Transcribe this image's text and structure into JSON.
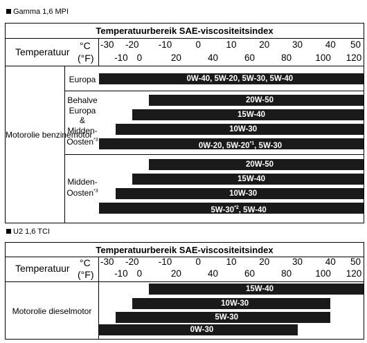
{
  "sections": [
    {
      "title": "Gamma 1,6 MPI",
      "caption": "Temperatuurbereik SAE-viscositeitsindex",
      "temp_label": "Temperatuur",
      "unit_c": "°C",
      "unit_f": "(°F)",
      "celsius_ticks": [
        "-30",
        "-20",
        "-10",
        "0",
        "10",
        "20",
        "30",
        "40",
        "50"
      ],
      "fahrenheit_ticks": [
        "-10",
        "0",
        "20",
        "40",
        "60",
        "80",
        "100",
        "120"
      ],
      "row_label": "Motorolie benzinemotor",
      "groups": [
        {
          "label": "Europa",
          "bars": [
            {
              "label": "0W-40, 5W-20, 5W-30, 5W-40",
              "from_c": -30,
              "to_c": 50
            }
          ]
        },
        {
          "label": "Behalve Europa & Midden-Oosten*3",
          "bars": [
            {
              "label": "20W-50",
              "from_c": -15,
              "to_c": 50
            },
            {
              "label": "15W-40",
              "from_c": -20,
              "to_c": 50
            },
            {
              "label": "10W-30",
              "from_c": -25,
              "to_c": 50
            },
            {
              "label": "0W-20, 5W-20*1, 5W-30",
              "from_c": -30,
              "to_c": 50
            }
          ]
        },
        {
          "label": "Midden-Oosten*3",
          "bars": [
            {
              "label": "20W-50",
              "from_c": -15,
              "to_c": 50
            },
            {
              "label": "15W-40",
              "from_c": -20,
              "to_c": 50
            },
            {
              "label": "10W-30",
              "from_c": -25,
              "to_c": 50
            },
            {
              "label": "5W-30*2, 5W-40",
              "from_c": -30,
              "to_c": 50
            }
          ]
        }
      ]
    },
    {
      "title": "U2 1,6 TCI",
      "caption": "Temperatuurbereik SAE-viscositeitsindex",
      "temp_label": "Temperatuur",
      "unit_c": "°C",
      "unit_f": "(°F)",
      "celsius_ticks": [
        "-30",
        "-20",
        "-10",
        "0",
        "10",
        "20",
        "30",
        "40",
        "50"
      ],
      "fahrenheit_ticks": [
        "-10",
        "0",
        "20",
        "40",
        "60",
        "80",
        "100",
        "120"
      ],
      "row_label": "Motorolie dieselmotor",
      "groups": [
        {
          "label": "",
          "bars": [
            {
              "label": "15W-40",
              "from_c": -15,
              "to_c": 50
            },
            {
              "label": "10W-30",
              "from_c": -20,
              "to_c": 40
            },
            {
              "label": "5W-30",
              "from_c": -25,
              "to_c": 40
            },
            {
              "label": "0W-30",
              "from_c": -30,
              "to_c": 30
            }
          ]
        }
      ]
    }
  ]
}
